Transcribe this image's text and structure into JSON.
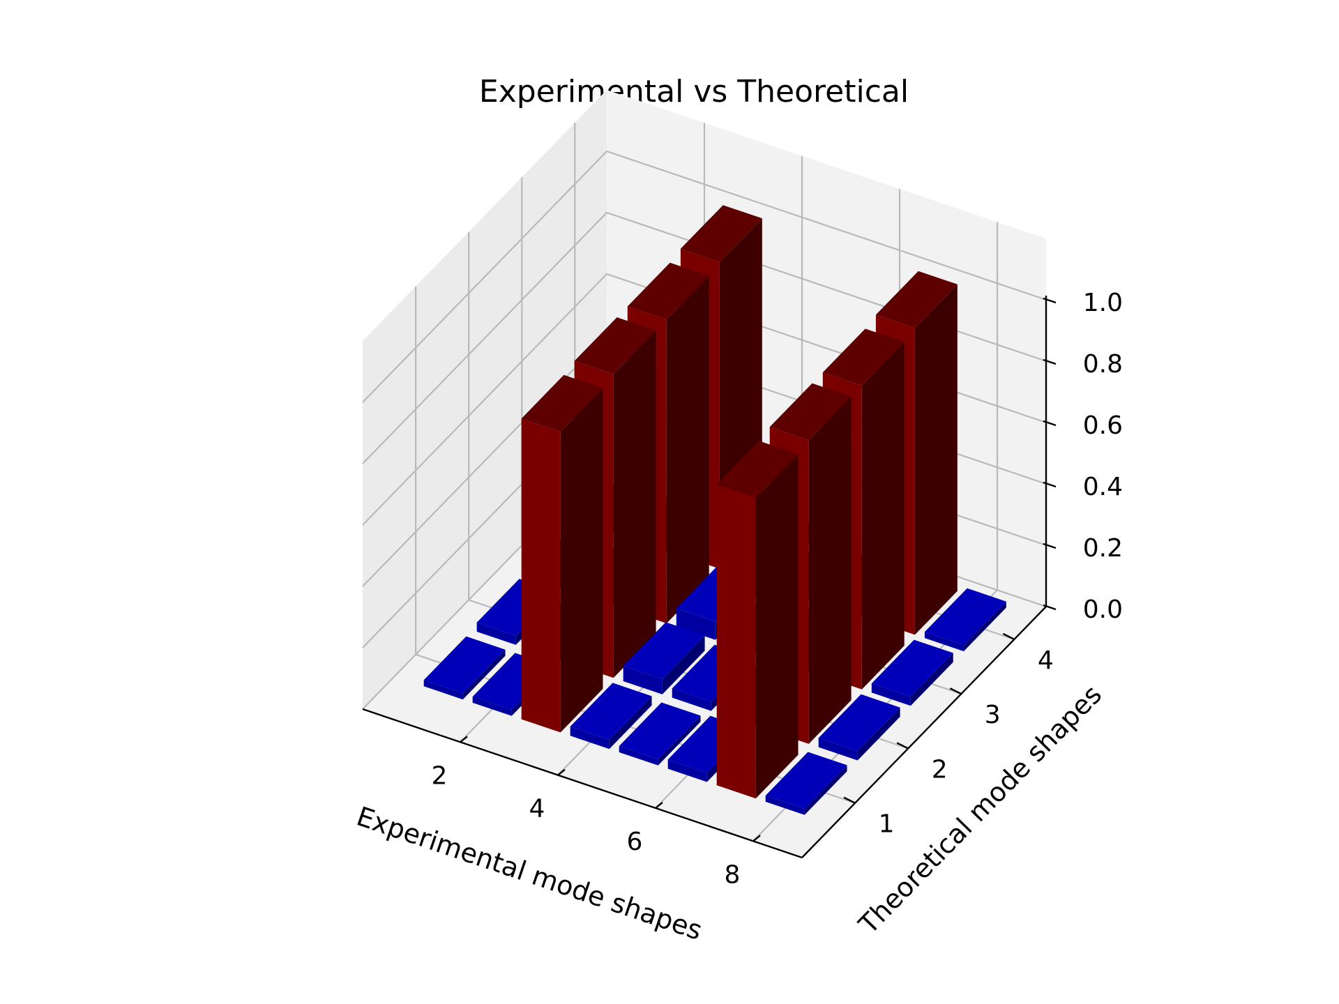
{
  "chart_data": {
    "type": "bar3d",
    "title": "Experimental vs Theoretical",
    "xlabel": "Experimental mode shapes",
    "ylabel": "Theoretical mode shapes",
    "zlabel": "",
    "x_ticks": [
      "2",
      "4",
      "6",
      "8"
    ],
    "y_ticks": [
      "1",
      "2",
      "3",
      "4"
    ],
    "z_ticks": [
      "0.0",
      "0.2",
      "0.4",
      "0.6",
      "0.8",
      "1.0"
    ],
    "xlim": [
      0,
      9
    ],
    "ylim": [
      0,
      4.6
    ],
    "zlim": [
      0,
      1.0
    ],
    "colors": {
      "high": "#7a0000",
      "high_side": "#3d0000",
      "high_top": "#5e0000",
      "low": "#0000a0",
      "low_side": "#000070",
      "low_top": "#0000b8"
    },
    "bars": [
      {
        "x": 3,
        "y": 1,
        "value": 0.98
      },
      {
        "x": 3,
        "y": 2,
        "value": 0.99
      },
      {
        "x": 3,
        "y": 3,
        "value": 0.99
      },
      {
        "x": 3,
        "y": 4,
        "value": 1.0
      },
      {
        "x": 7,
        "y": 1,
        "value": 0.98
      },
      {
        "x": 7,
        "y": 2,
        "value": 0.99
      },
      {
        "x": 7,
        "y": 3,
        "value": 0.99
      },
      {
        "x": 7,
        "y": 4,
        "value": 1.0
      },
      {
        "x": 1,
        "y": 1,
        "value": 0.02
      },
      {
        "x": 1,
        "y": 2,
        "value": 0.03
      },
      {
        "x": 1,
        "y": 3,
        "value": 0.02
      },
      {
        "x": 1,
        "y": 4,
        "value": 0.02
      },
      {
        "x": 2,
        "y": 1,
        "value": 0.02
      },
      {
        "x": 2,
        "y": 2,
        "value": 0.03
      },
      {
        "x": 2,
        "y": 3,
        "value": 0.03
      },
      {
        "x": 2,
        "y": 4,
        "value": 0.02
      },
      {
        "x": 4,
        "y": 1,
        "value": 0.03
      },
      {
        "x": 4,
        "y": 2,
        "value": 0.05
      },
      {
        "x": 4,
        "y": 3,
        "value": 0.06
      },
      {
        "x": 4,
        "y": 4,
        "value": 0.06
      },
      {
        "x": 5,
        "y": 1,
        "value": 0.02
      },
      {
        "x": 5,
        "y": 2,
        "value": 0.03
      },
      {
        "x": 5,
        "y": 3,
        "value": 0.03
      },
      {
        "x": 5,
        "y": 4,
        "value": 0.02
      },
      {
        "x": 6,
        "y": 1,
        "value": 0.03
      },
      {
        "x": 6,
        "y": 2,
        "value": 0.04
      },
      {
        "x": 6,
        "y": 3,
        "value": 0.05
      },
      {
        "x": 6,
        "y": 4,
        "value": 0.05
      },
      {
        "x": 8,
        "y": 1,
        "value": 0.02
      },
      {
        "x": 8,
        "y": 2,
        "value": 0.03
      },
      {
        "x": 8,
        "y": 3,
        "value": 0.03
      },
      {
        "x": 8,
        "y": 4,
        "value": 0.02
      }
    ]
  }
}
